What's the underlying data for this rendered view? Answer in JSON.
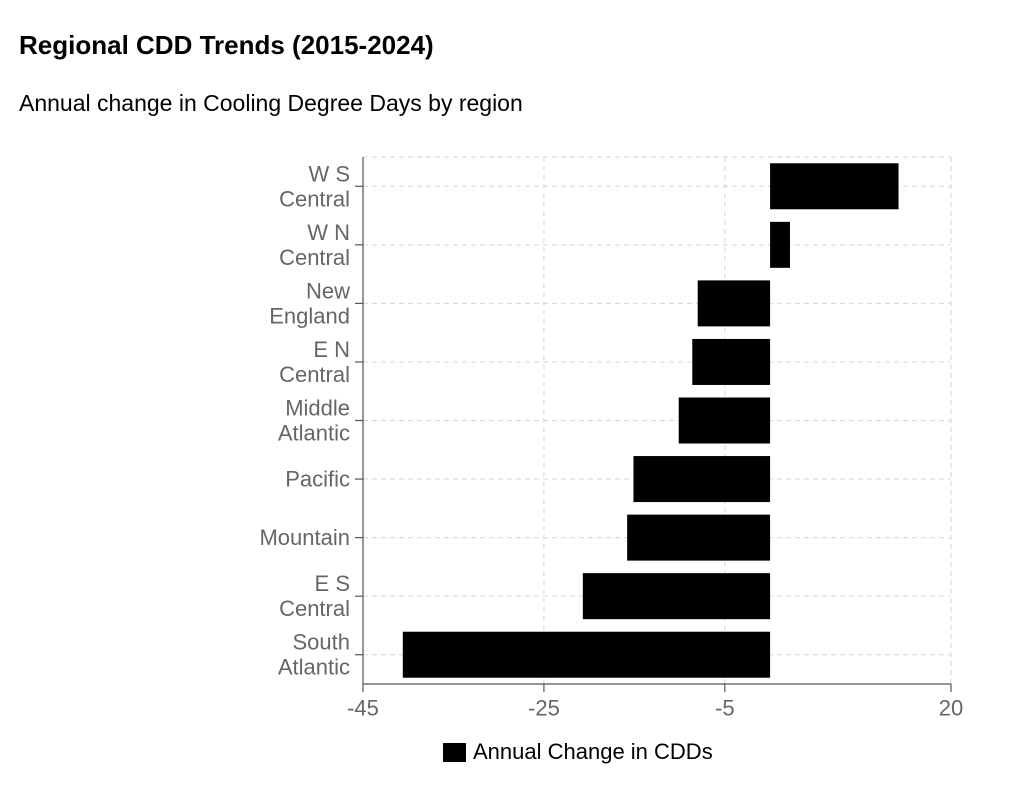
{
  "chart_data": {
    "type": "bar",
    "orientation": "horizontal",
    "title": "Regional CDD Trends (2015-2024)",
    "subtitle": "Annual change in Cooling Degree Days by region",
    "categories": [
      [
        "W S",
        "Central"
      ],
      [
        "W N",
        "Central"
      ],
      [
        "New",
        "England"
      ],
      [
        "E N",
        "Central"
      ],
      [
        "Middle",
        "Atlantic"
      ],
      [
        "Pacific"
      ],
      [
        "Mountain"
      ],
      [
        "E S",
        "Central"
      ],
      [
        "South",
        "Atlantic"
      ]
    ],
    "series": [
      {
        "name": "Annual Change in CDDs",
        "color": "#000000",
        "values": [
          14.2,
          2.2,
          -8.0,
          -8.6,
          -10.1,
          -15.1,
          -15.8,
          -20.7,
          -40.6
        ]
      }
    ],
    "xlim": [
      -45,
      20
    ],
    "xticks": [
      "-45",
      "-25",
      "-5",
      "20"
    ],
    "xtick_values": [
      -45,
      -25,
      -5,
      20
    ],
    "grid": true,
    "legend_position": "bottom"
  }
}
